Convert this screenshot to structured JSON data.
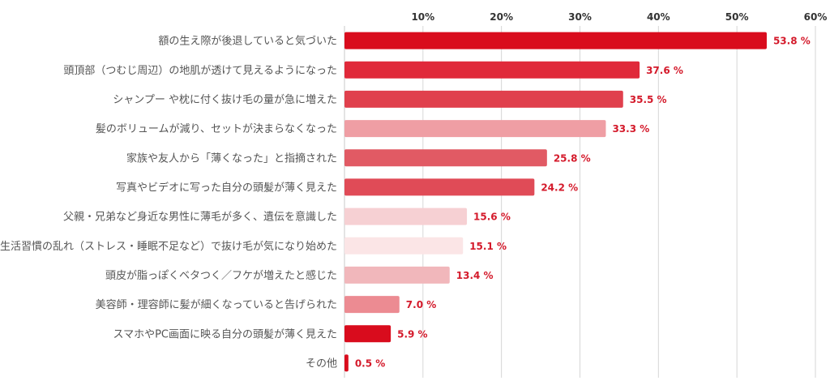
{
  "chart_data": {
    "type": "bar",
    "orientation": "horizontal",
    "categories": [
      "額の生え際が後退していると気づいた",
      "頭頂部（つむじ周辺）の地肌が透けて見えるようになった",
      "シャンプー や枕に付く抜け毛の量が急に増えた",
      "髪のボリュームが減り、セットが決まらなくなった",
      "家族や友人から「薄くなった」と指摘された",
      "写真やビデオに写った自分の頭髪が薄く見えた",
      "父親・兄弟など身近な男性に薄毛が多く、遺伝を意識した",
      "生活習慣の乱れ（ストレス・睡眠不足など）で抜け毛が気になり始めた",
      "頭皮が脂っぽくベタつく／フケが増えたと感じた",
      "美容師・理容師に髪が細くなっていると告げられた",
      "スマホやPC画面に映る自分の頭髪が薄く見えた",
      "その他"
    ],
    "values": [
      53.8,
      37.6,
      35.5,
      33.3,
      25.8,
      24.2,
      15.6,
      15.1,
      13.4,
      7.0,
      5.9,
      0.5
    ],
    "value_labels": [
      "53.8 %",
      "37.6 %",
      "35.5 %",
      "33.3 %",
      "25.8 %",
      "24.2 %",
      "15.6 %",
      "15.1 %",
      "13.4 %",
      "7.0 %",
      "5.9 %",
      "0.5 %"
    ],
    "bar_colors": [
      "#d90c1d",
      "#e0293a",
      "#e0404d",
      "#ef9ea4",
      "#e15a64",
      "#e04b57",
      "#f6d0d3",
      "#fbe5e6",
      "#f1b7bb",
      "#ec8b92",
      "#d90c1d",
      "#d90c1d"
    ],
    "label_color": "#d41a2b",
    "xlim": [
      0,
      60
    ],
    "xticks": [
      10,
      20,
      30,
      40,
      50,
      60
    ],
    "xtick_labels": [
      "10%",
      "20%",
      "30%",
      "40%",
      "50%",
      "60%"
    ],
    "xaxis_position": "top",
    "grid": true,
    "title": "",
    "xlabel": "",
    "ylabel": ""
  }
}
